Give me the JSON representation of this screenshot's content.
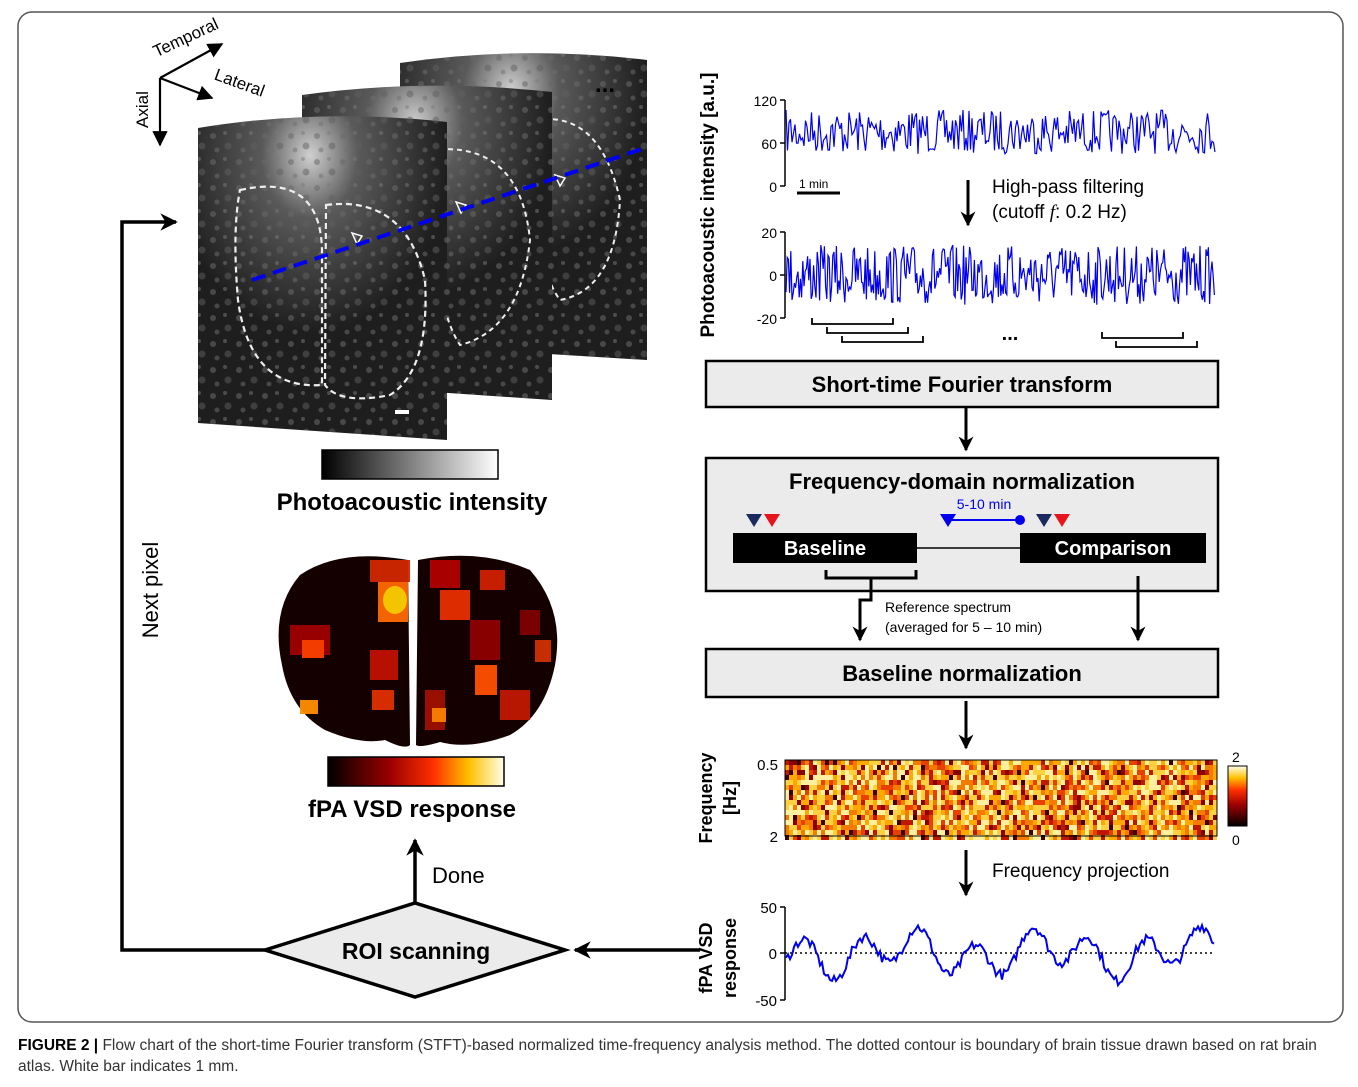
{
  "axes3d": {
    "temporal": "Temporal",
    "lateral": "Lateral",
    "axial": "Axial"
  },
  "ellipsis": "...",
  "colorbar_gray_label": "Photoacoustic intensity",
  "colorbar_hot_label": "fPA VSD response",
  "loop": {
    "next_pixel": "Next pixel",
    "done": "Done",
    "roi_scanning": "ROI scanning"
  },
  "raw_trace": {
    "ylabel": "Photoacoustic intensity [a.u.]",
    "yticks": [
      "120",
      "60",
      "0"
    ],
    "scalebar": "1 min"
  },
  "filtered_trace": {
    "yticks": [
      "20",
      "0",
      "-20"
    ],
    "ellipsis": "..."
  },
  "steps": {
    "highpass_line1": "High-pass filtering",
    "highpass_line2_pre": "(cutoff ",
    "highpass_line2_f": "f",
    "highpass_line2_post": ": 0.2 Hz)",
    "stft": "Short-time Fourier transform",
    "fdn": "Frequency-domain normalization",
    "window": "5-10 min",
    "baseline": "Baseline",
    "comparison": "Comparison",
    "reference_line1": "Reference spectrum",
    "reference_line2": "(averaged for 5 – 10 min)",
    "baseline_norm": "Baseline normalization",
    "freq_projection": "Frequency projection"
  },
  "spectrogram": {
    "ylabel_line1": "Frequency",
    "ylabel_line2": "[Hz]",
    "yticks": [
      "0.5",
      "2"
    ],
    "colorbar_ticks": [
      "2",
      "0"
    ]
  },
  "response_trace": {
    "ylabel_line1": "fPA VSD",
    "ylabel_line2": "response",
    "yticks": [
      "50",
      "0",
      "-50"
    ]
  },
  "colors": {
    "trace_blue": "#0000ee",
    "marker_navy": "#1a2a5e",
    "marker_red": "#e8141b",
    "box_fill": "#ebebeb"
  },
  "caption": {
    "label": "FIGURE 2 |",
    "text": "Flow chart of the short-time Fourier transform (STFT)-based normalized time-frequency analysis method. The dotted contour is boundary of brain tissue drawn based on rat brain atlas. White bar indicates 1 mm."
  }
}
